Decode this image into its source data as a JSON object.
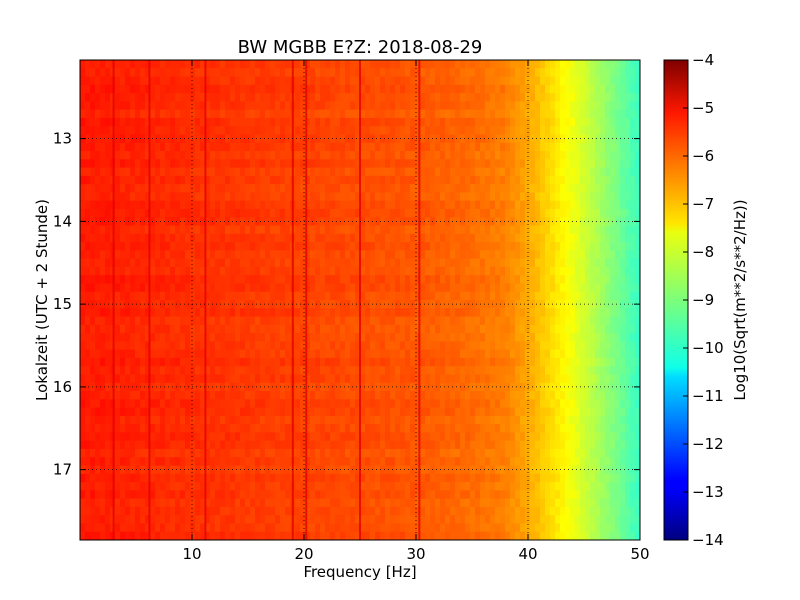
{
  "chart_data": {
    "type": "heatmap",
    "title": "BW MGBB E?Z: 2018-08-29",
    "xlabel": "Frequency [Hz]",
    "ylabel": "Lokalzeit (UTC + 2 Stunde)",
    "xlim": [
      0,
      50
    ],
    "ylim": [
      12.05,
      17.85
    ],
    "y_inverted": true,
    "x_ticks": [
      10,
      20,
      30,
      40,
      50
    ],
    "y_ticks": [
      13,
      14,
      15,
      16,
      17
    ],
    "grid": true,
    "colormap": "jet",
    "colorbar": {
      "label": "Log10(Sqrt(m**2/s**2/Hz))",
      "range": [
        -14,
        -4
      ],
      "ticks": [
        -4,
        -5,
        -6,
        -7,
        -8,
        -9,
        -10,
        -11,
        -12,
        -13,
        -14
      ]
    },
    "spectrum_profile": {
      "frequency_hz": [
        0,
        5,
        10,
        15,
        20,
        25,
        30,
        35,
        38,
        40,
        42,
        44,
        46,
        48,
        50
      ],
      "log10_amplitude": [
        -5.5,
        -5.6,
        -5.7,
        -5.8,
        -5.9,
        -6.0,
        -6.1,
        -6.3,
        -6.5,
        -6.9,
        -7.4,
        -7.9,
        -8.5,
        -9.1,
        -9.7
      ]
    },
    "spectral_lines_hz": [
      3,
      6.2,
      11.2,
      19,
      20.2,
      25,
      30.3
    ]
  }
}
